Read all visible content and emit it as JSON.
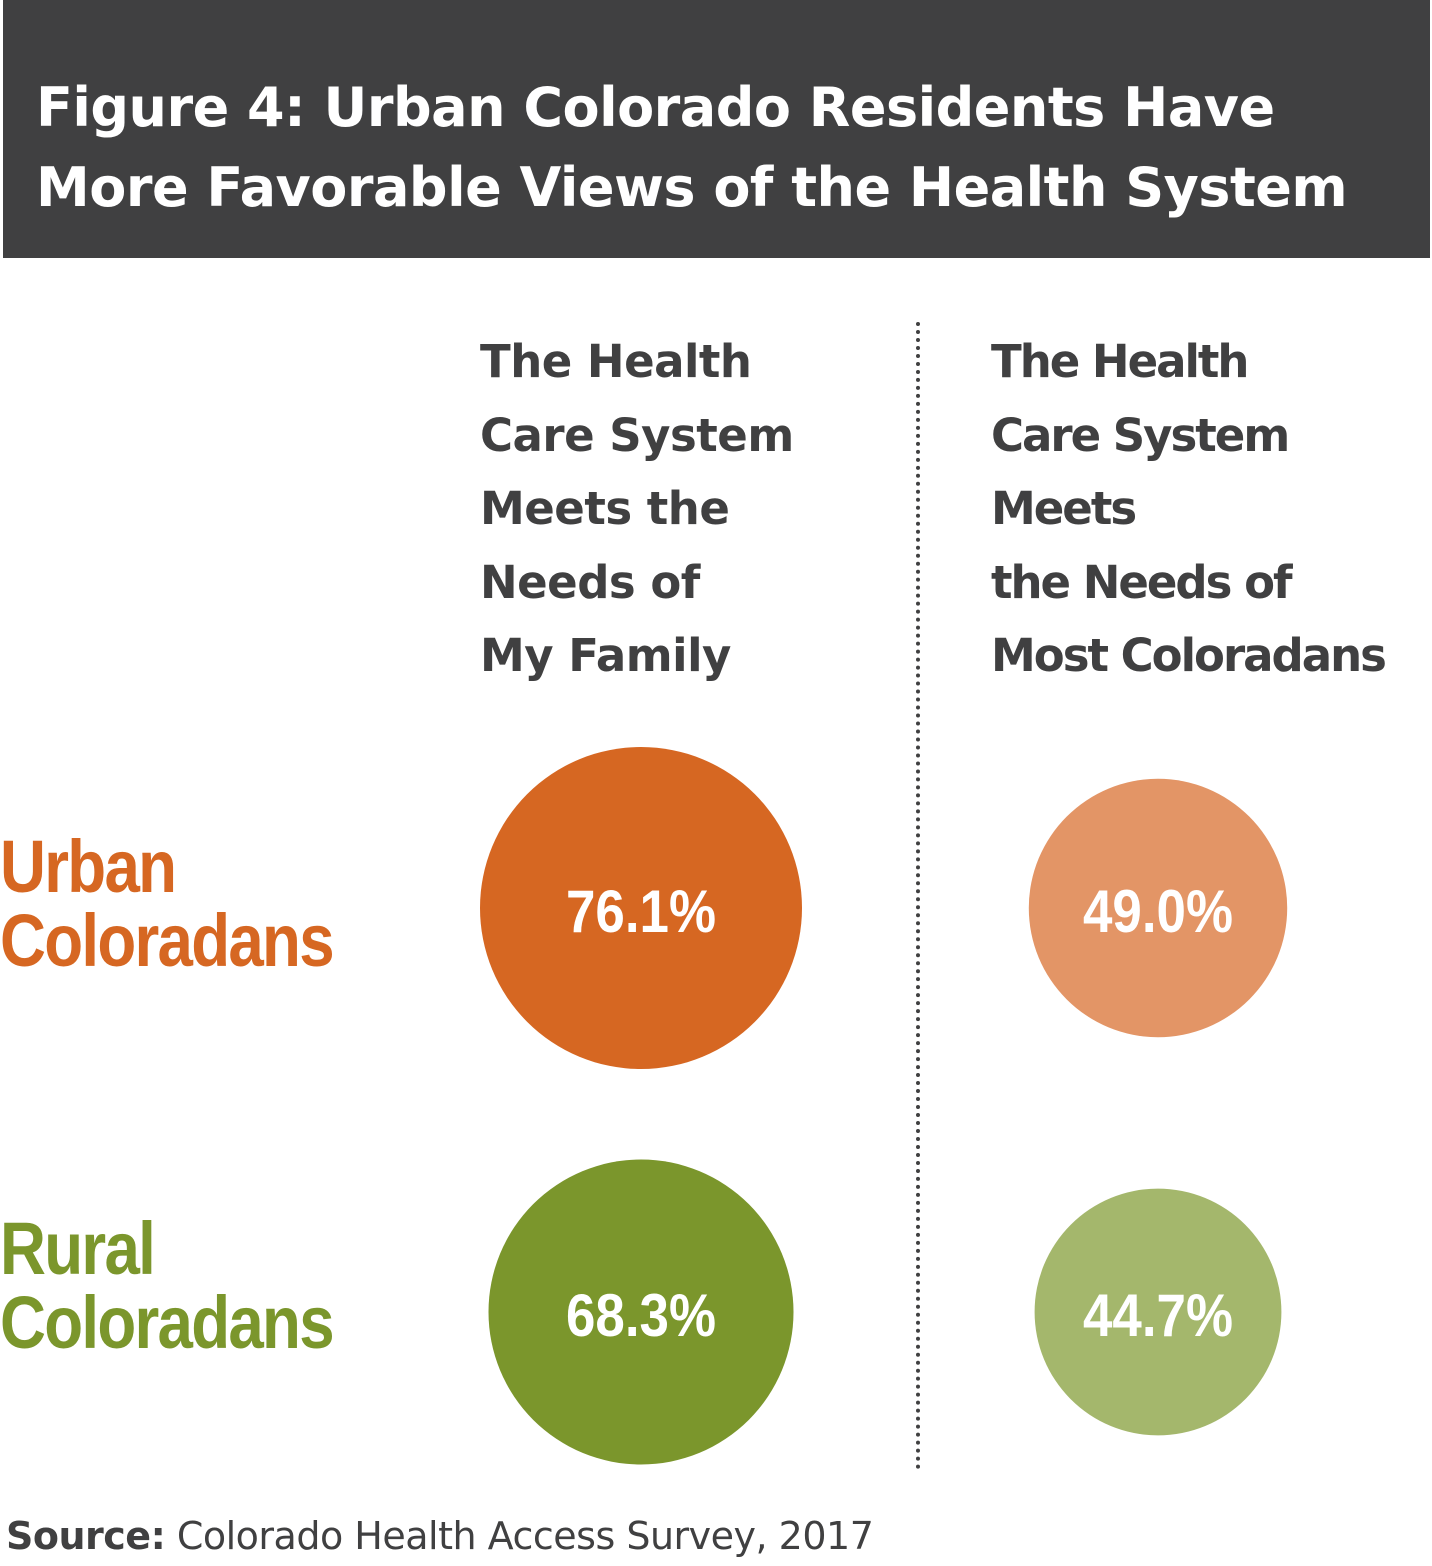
{
  "title": {
    "lines": [
      "Figure 4: Urban Colorado Residents Have",
      "More Favorable Views of the Health System"
    ]
  },
  "chart_data": {
    "type": "bubble",
    "columns": [
      {
        "label_lines": [
          "The Health",
          "Care System",
          "Meets the",
          "Needs of",
          "My Family"
        ]
      },
      {
        "label_lines": [
          "The Health",
          "Care System",
          "Meets",
          "the Needs of",
          "Most Coloradans"
        ]
      }
    ],
    "rows": [
      {
        "label_lines": [
          "Urban",
          "Coloradans"
        ],
        "color": "#d66722"
      },
      {
        "label_lines": [
          "Rural",
          "Coloradans"
        ],
        "color": "#7b962c"
      }
    ],
    "values": [
      [
        76.1,
        49.0
      ],
      [
        68.3,
        44.7
      ]
    ],
    "value_labels": [
      [
        "76.1%",
        "49.0%"
      ],
      [
        "68.3%",
        "44.7%"
      ]
    ],
    "unit": "%",
    "colors": [
      [
        "#d66722",
        "#e39566"
      ],
      [
        "#7b962c",
        "#a4b76c"
      ]
    ]
  },
  "source": {
    "label": "Source:",
    "text": " Colorado Health Access Survey, 2017"
  }
}
